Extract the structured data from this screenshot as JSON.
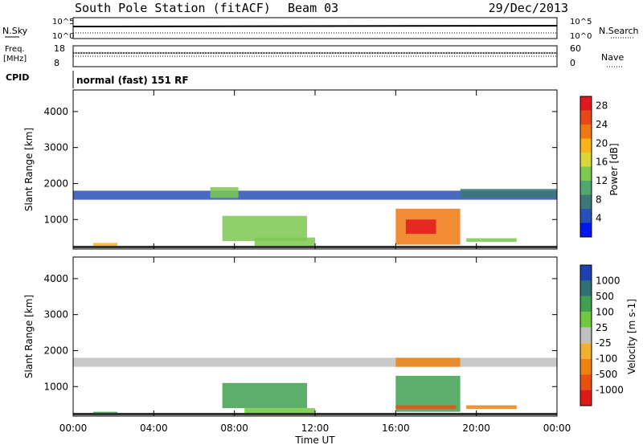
{
  "header": {
    "station": "South Pole Station (fitACF)",
    "beam": "Beam 03",
    "date": "29/Dec/2013"
  },
  "status_panels": {
    "nsky_label": "N.Sky",
    "nsky_left_ticks": [
      "10^5",
      "10^0"
    ],
    "nsky_right_ticks": [
      "10^5",
      "10^0"
    ],
    "nsearch_label": "N.Search",
    "freq_label_1": "Freq.",
    "freq_label_2": "[MHz]",
    "freq_left_ticks": [
      "18",
      "8"
    ],
    "nave_right_ticks": [
      "60",
      "0"
    ],
    "nave_label": "Nave",
    "cpid_label": "CPID",
    "cpid_value": "normal (fast) 151 RF"
  },
  "axes": {
    "ylabel": "Slant Range [km]",
    "y_ticks": [
      "1000",
      "2000",
      "3000",
      "4000"
    ],
    "y_ticks_values": [
      1000,
      2000,
      3000,
      4000
    ],
    "ylim": [
      180,
      4600
    ],
    "x_ticks": [
      "00:00",
      "04:00",
      "08:00",
      "12:00",
      "16:00",
      "20:00",
      "00:00"
    ],
    "x_ticks_values": [
      0,
      4,
      8,
      12,
      16,
      20,
      24
    ],
    "xlim": [
      0,
      24
    ],
    "xlabel": "Time UT"
  },
  "power_colorbar": {
    "label": "Power [dB]",
    "tick_labels": [
      "4",
      "8",
      "12",
      "16",
      "20",
      "24",
      "28"
    ],
    "tick_values": [
      4,
      8,
      12,
      16,
      20,
      24,
      28
    ],
    "range": [
      0,
      30
    ],
    "colors": [
      "#0018f0",
      "#2850b8",
      "#3c7878",
      "#50a870",
      "#7cc850",
      "#d8d838",
      "#f8b418",
      "#f07810",
      "#e84818",
      "#e01820"
    ]
  },
  "velocity_colorbar": {
    "label": "Velocity [m s-1]",
    "tick_labels": [
      "1000",
      "500",
      "100",
      "25",
      "-25",
      "-100",
      "-500",
      "-1000"
    ],
    "colors": [
      "#2040b0",
      "#307070",
      "#40a050",
      "#70c840",
      "#c0c0c0",
      "#f0b030",
      "#f08010",
      "#e85010",
      "#e01818"
    ]
  },
  "chart_data": [
    {
      "type": "heatmap",
      "title": "Power",
      "xlabel": "Time UT",
      "ylabel": "Slant Range [km]",
      "xlim": [
        0,
        24
      ],
      "ylim": [
        180,
        4600
      ],
      "value_units": "dB",
      "regions": [
        {
          "t": [
            0.0,
            24.0
          ],
          "r": [
            1550,
            1800
          ],
          "value": 5
        },
        {
          "t": [
            6.8,
            8.2
          ],
          "r": [
            1600,
            1900
          ],
          "value": 12
        },
        {
          "t": [
            19.2,
            24.0
          ],
          "r": [
            1600,
            1850
          ],
          "value": 7
        },
        {
          "t": [
            7.4,
            11.6
          ],
          "r": [
            400,
            1100
          ],
          "value": 12
        },
        {
          "t": [
            16.0,
            19.2
          ],
          "r": [
            300,
            1300
          ],
          "value": 21
        },
        {
          "t": [
            16.5,
            18.0
          ],
          "r": [
            600,
            1000
          ],
          "value": 28
        },
        {
          "t": [
            1.0,
            2.2
          ],
          "r": [
            250,
            350
          ],
          "value": 18
        },
        {
          "t": [
            9.0,
            12.0
          ],
          "r": [
            250,
            500
          ],
          "value": 14
        },
        {
          "t": [
            19.5,
            22.0
          ],
          "r": [
            380,
            480
          ],
          "value": 12
        }
      ]
    },
    {
      "type": "heatmap",
      "title": "Velocity",
      "xlabel": "Time UT",
      "ylabel": "Slant Range [km]",
      "xlim": [
        0,
        24
      ],
      "ylim": [
        180,
        4600
      ],
      "value_units": "m s-1",
      "regions": [
        {
          "t": [
            0.0,
            24.0
          ],
          "r": [
            1550,
            1800
          ],
          "value": 0
        },
        {
          "t": [
            16.0,
            19.2
          ],
          "r": [
            1550,
            1800
          ],
          "value": -120
        },
        {
          "t": [
            7.4,
            11.6
          ],
          "r": [
            400,
            1100
          ],
          "value": 150
        },
        {
          "t": [
            16.0,
            19.2
          ],
          "r": [
            300,
            1300
          ],
          "value": 120
        },
        {
          "t": [
            16.0,
            19.0
          ],
          "r": [
            380,
            480
          ],
          "value": -300
        },
        {
          "t": [
            8.5,
            12.0
          ],
          "r": [
            200,
            400
          ],
          "value": 60
        },
        {
          "t": [
            1.0,
            2.2
          ],
          "r": [
            200,
            300
          ],
          "value": 300
        },
        {
          "t": [
            19.5,
            22.0
          ],
          "r": [
            380,
            480
          ],
          "value": -150
        }
      ]
    }
  ]
}
